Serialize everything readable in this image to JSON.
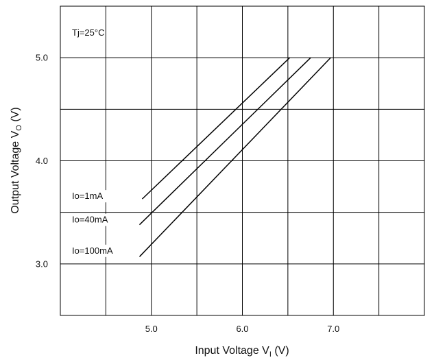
{
  "chart_data": {
    "type": "line",
    "xlabel": "Input Voltage",
    "xlabel_symbol": "V",
    "xlabel_subscript": "I",
    "xlabel_unit": "(V)",
    "ylabel": "Output Voltage",
    "ylabel_symbol": "V",
    "ylabel_subscript": "O",
    "ylabel_unit": "(V)",
    "xlim": [
      4.0,
      8.0
    ],
    "ylim": [
      2.5,
      5.5
    ],
    "x_ticks": [
      {
        "value": 5.0,
        "label": "5.0"
      },
      {
        "value": 6.0,
        "label": "6.0"
      },
      {
        "value": 7.0,
        "label": "7.0"
      }
    ],
    "y_ticks": [
      {
        "value": 3.0,
        "label": "3.0"
      },
      {
        "value": 4.0,
        "label": "4.0"
      },
      {
        "value": 5.0,
        "label": "5.0"
      }
    ],
    "x_gridlines": [
      4.5,
      5.0,
      5.5,
      6.0,
      6.5,
      7.0,
      7.5
    ],
    "y_gridlines": [
      3.0,
      3.5,
      4.0,
      4.5,
      5.0
    ],
    "grid": true,
    "annotation": "Tj=25°C",
    "series": [
      {
        "name": "Io=1mA",
        "x": [
          4.9,
          6.52
        ],
        "y": [
          3.63,
          5.0
        ]
      },
      {
        "name": "Io=40mA",
        "x": [
          4.87,
          6.75
        ],
        "y": [
          3.38,
          5.0
        ]
      },
      {
        "name": "Io=100mA",
        "x": [
          4.87,
          6.97
        ],
        "y": [
          3.07,
          5.0
        ]
      }
    ],
    "line_color": "#000000"
  }
}
